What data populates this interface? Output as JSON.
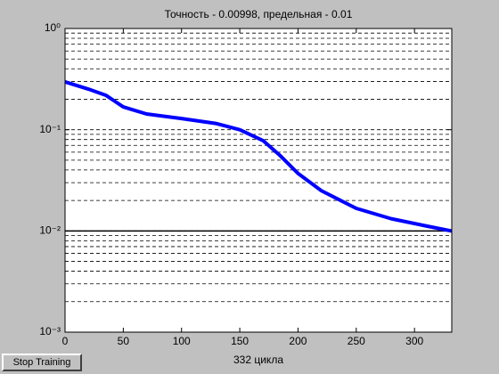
{
  "chart_data": {
    "type": "line",
    "title": "Точность - 0.00998, предельная - 0.01",
    "x_label": "332 цикла",
    "x": [
      0,
      20,
      35,
      50,
      70,
      100,
      130,
      150,
      170,
      185,
      200,
      220,
      250,
      280,
      310,
      332
    ],
    "series": [
      {
        "color": "#0000ff",
        "values": [
          0.297,
          0.252,
          0.219,
          0.168,
          0.143,
          0.129,
          0.115,
          0.1,
          0.078,
          0.055,
          0.037,
          0.025,
          0.0167,
          0.0132,
          0.0112,
          0.00998
        ]
      }
    ],
    "goal": 0.01,
    "goal_color": "#000000",
    "xlim": [
      0,
      332
    ],
    "xticks": [
      0,
      50,
      100,
      150,
      200,
      250,
      300
    ],
    "ylim": [
      0.001,
      1
    ],
    "log_y": true,
    "yticks": [
      {
        "value": 0.001,
        "label": "10⁻³"
      },
      {
        "value": 0.01,
        "label": "10⁻²"
      },
      {
        "value": 0.1,
        "label": "10⁻¹"
      },
      {
        "value": 1,
        "label": "10⁰"
      }
    ],
    "grid": true
  },
  "button": {
    "label": "Stop Training"
  }
}
